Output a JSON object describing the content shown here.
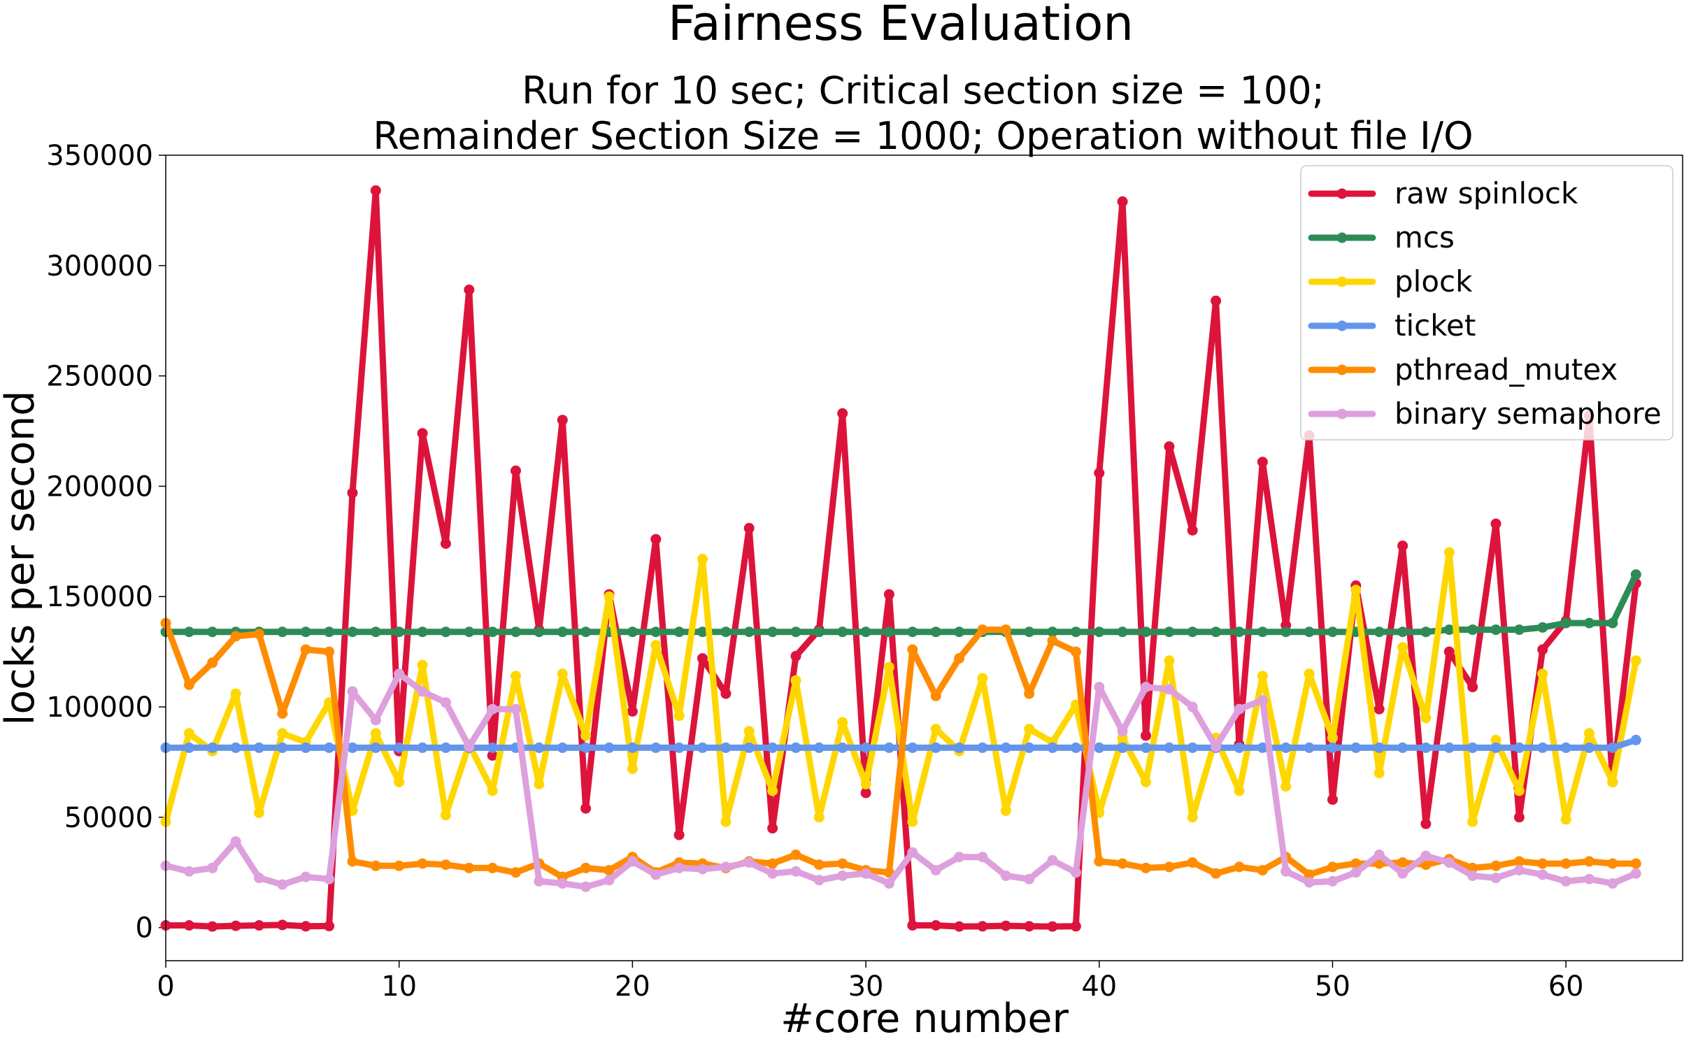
{
  "chart_data": {
    "type": "line",
    "title": "Fairness Evaluation",
    "subtitle_lines": [
      "Run for 10 sec; Critical section size = 100;",
      "Remainder Section Size = 1000; Operation without file I/O"
    ],
    "xlabel": "#core number",
    "ylabel": "locks per second",
    "xlim": [
      0,
      65
    ],
    "ylim": [
      -15000,
      350000
    ],
    "x_ticks": [
      0,
      10,
      20,
      30,
      40,
      50,
      60
    ],
    "y_ticks": [
      0,
      50000,
      100000,
      150000,
      200000,
      250000,
      300000,
      350000
    ],
    "x_tick_labels": [
      "0",
      "10",
      "20",
      "30",
      "40",
      "50",
      "60"
    ],
    "y_tick_labels": [
      "0",
      "50000",
      "100000",
      "150000",
      "200000",
      "250000",
      "300000",
      "350000"
    ],
    "grid": false,
    "legend_position": "top-right",
    "x": [
      0,
      1,
      2,
      3,
      4,
      5,
      6,
      7,
      8,
      9,
      10,
      11,
      12,
      13,
      14,
      15,
      16,
      17,
      18,
      19,
      20,
      21,
      22,
      23,
      24,
      25,
      26,
      27,
      28,
      29,
      30,
      31,
      32,
      33,
      34,
      35,
      36,
      37,
      38,
      39,
      40,
      41,
      42,
      43,
      44,
      45,
      46,
      47,
      48,
      49,
      50,
      51,
      52,
      53,
      54,
      55,
      56,
      57,
      58,
      59,
      60,
      61,
      62,
      63
    ],
    "series": [
      {
        "name": "raw spinlock",
        "color": "#DC143C",
        "values": [
          1000,
          1000,
          500,
          800,
          1000,
          1200,
          600,
          700,
          197000,
          334000,
          80000,
          224000,
          174000,
          289000,
          78000,
          207000,
          135000,
          230000,
          54000,
          151000,
          98000,
          176000,
          42000,
          122000,
          106000,
          181000,
          45000,
          123000,
          135000,
          233000,
          61000,
          151000,
          1000,
          1000,
          500,
          600,
          800,
          600,
          500,
          600,
          206000,
          329000,
          87000,
          218000,
          180000,
          284000,
          83000,
          211000,
          137000,
          223000,
          58000,
          155000,
          99000,
          173000,
          47000,
          125000,
          109000,
          183000,
          50000,
          126000,
          139000,
          232000,
          66000,
          156000
        ]
      },
      {
        "name": "mcs",
        "color": "#2E8B57",
        "values": [
          134000,
          134000,
          134000,
          134000,
          134000,
          134000,
          134000,
          134000,
          134000,
          134000,
          134000,
          134000,
          134000,
          134000,
          134000,
          134000,
          134000,
          134000,
          134000,
          134000,
          134000,
          134000,
          134000,
          134000,
          134000,
          134000,
          134000,
          134000,
          134000,
          134000,
          134000,
          134000,
          134000,
          134000,
          134000,
          134000,
          134000,
          134000,
          134000,
          134000,
          134000,
          134000,
          134000,
          134000,
          134000,
          134000,
          134000,
          134000,
          134000,
          134000,
          134000,
          134000,
          134000,
          134000,
          134000,
          135000,
          135000,
          135000,
          135000,
          136000,
          138000,
          138000,
          138000,
          160000
        ]
      },
      {
        "name": "plock",
        "color": "#FFD700",
        "values": [
          48000,
          88000,
          80000,
          106000,
          52000,
          88000,
          84000,
          102000,
          53000,
          88000,
          66000,
          119000,
          51000,
          83000,
          62000,
          114000,
          65000,
          115000,
          87000,
          150000,
          72000,
          128000,
          96000,
          167000,
          48000,
          89000,
          62000,
          112000,
          50000,
          93000,
          65000,
          118000,
          48000,
          90000,
          80000,
          113000,
          53000,
          90000,
          84000,
          101000,
          52000,
          86000,
          66000,
          121000,
          50000,
          86000,
          62000,
          114000,
          64000,
          115000,
          86000,
          153000,
          70000,
          127000,
          95000,
          170000,
          48000,
          85000,
          62000,
          115000,
          49000,
          88000,
          66000,
          121000
        ]
      },
      {
        "name": "ticket",
        "color": "#6495ED",
        "values": [
          81500,
          81500,
          81500,
          81500,
          81500,
          81500,
          81500,
          81500,
          81500,
          81500,
          81500,
          81500,
          81500,
          81500,
          81500,
          81500,
          81500,
          81500,
          81500,
          81500,
          81500,
          81500,
          81500,
          81500,
          81500,
          81500,
          81500,
          81500,
          81500,
          81500,
          81500,
          81500,
          81500,
          81500,
          81500,
          81500,
          81500,
          81500,
          81500,
          81500,
          81500,
          81500,
          81500,
          81500,
          81500,
          81500,
          81500,
          81500,
          81500,
          81500,
          81500,
          81500,
          81500,
          81500,
          81500,
          81500,
          81500,
          81500,
          81500,
          81500,
          81500,
          81500,
          81500,
          85000
        ]
      },
      {
        "name": "pthread_mutex",
        "color": "#FF8C00",
        "values": [
          138000,
          110000,
          120000,
          132000,
          133000,
          97000,
          126000,
          125000,
          30000,
          28000,
          28000,
          29000,
          28500,
          27000,
          27000,
          25000,
          29000,
          23000,
          27000,
          26000,
          32000,
          25000,
          29500,
          29000,
          27000,
          30000,
          29000,
          33000,
          28500,
          29000,
          26000,
          25000,
          126000,
          105000,
          122000,
          135000,
          135000,
          106000,
          130000,
          125000,
          30000,
          29000,
          27000,
          27500,
          29500,
          24500,
          27500,
          26000,
          32000,
          24000,
          27500,
          29000,
          29000,
          29500,
          28500,
          31000,
          27000,
          28000,
          30000,
          29000,
          29000,
          30000,
          29000,
          29000
        ]
      },
      {
        "name": "binary semaphore",
        "color": "#DDA0DD",
        "values": [
          28000,
          25500,
          27000,
          39000,
          22500,
          19500,
          23000,
          22000,
          107000,
          94000,
          115000,
          107000,
          102000,
          82000,
          99000,
          99000,
          21000,
          20000,
          18500,
          21500,
          30000,
          24000,
          27000,
          26500,
          27500,
          29500,
          24500,
          25500,
          21500,
          23500,
          24500,
          20000,
          34000,
          26000,
          32000,
          32000,
          23500,
          22000,
          30500,
          25000,
          109000,
          89000,
          109000,
          108000,
          100000,
          82000,
          99000,
          103000,
          25500,
          20500,
          21000,
          25000,
          33000,
          24500,
          32500,
          29500,
          23500,
          22500,
          26000,
          24000,
          21000,
          22000,
          20000,
          24500
        ]
      }
    ]
  }
}
